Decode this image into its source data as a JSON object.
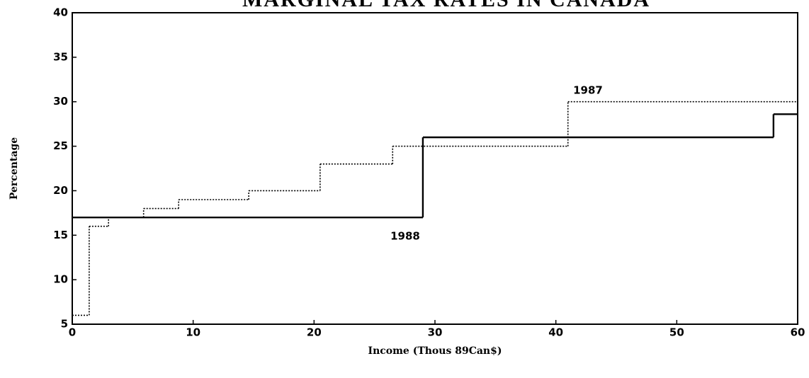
{
  "chart_data": {
    "type": "step",
    "title": "MARGINAL TAX RATES IN CANADA",
    "xlabel": "Income (Thous 89Can$)",
    "ylabel": "Percentage",
    "step": "post",
    "xlim": [
      0,
      60
    ],
    "xticks": [
      0,
      10,
      20,
      30,
      40,
      50,
      60
    ],
    "ylim": [
      5,
      40
    ],
    "yticks": [
      5,
      10,
      15,
      20,
      25,
      30,
      35,
      40
    ],
    "grid": false,
    "annotations": [
      "1987",
      "1988"
    ],
    "series": [
      {
        "name": "1987",
        "color": "#000000",
        "style": "dotted",
        "x": [
          0,
          1.4,
          3,
          5.9,
          8.8,
          14.6,
          20.5,
          26.5,
          41
        ],
        "values": [
          6,
          16,
          17,
          18,
          19,
          20,
          23,
          25,
          30
        ]
      },
      {
        "name": "1988",
        "color": "#000000",
        "style": "solid",
        "x": [
          0,
          29,
          58
        ],
        "values": [
          17,
          26,
          28.6
        ]
      }
    ]
  }
}
